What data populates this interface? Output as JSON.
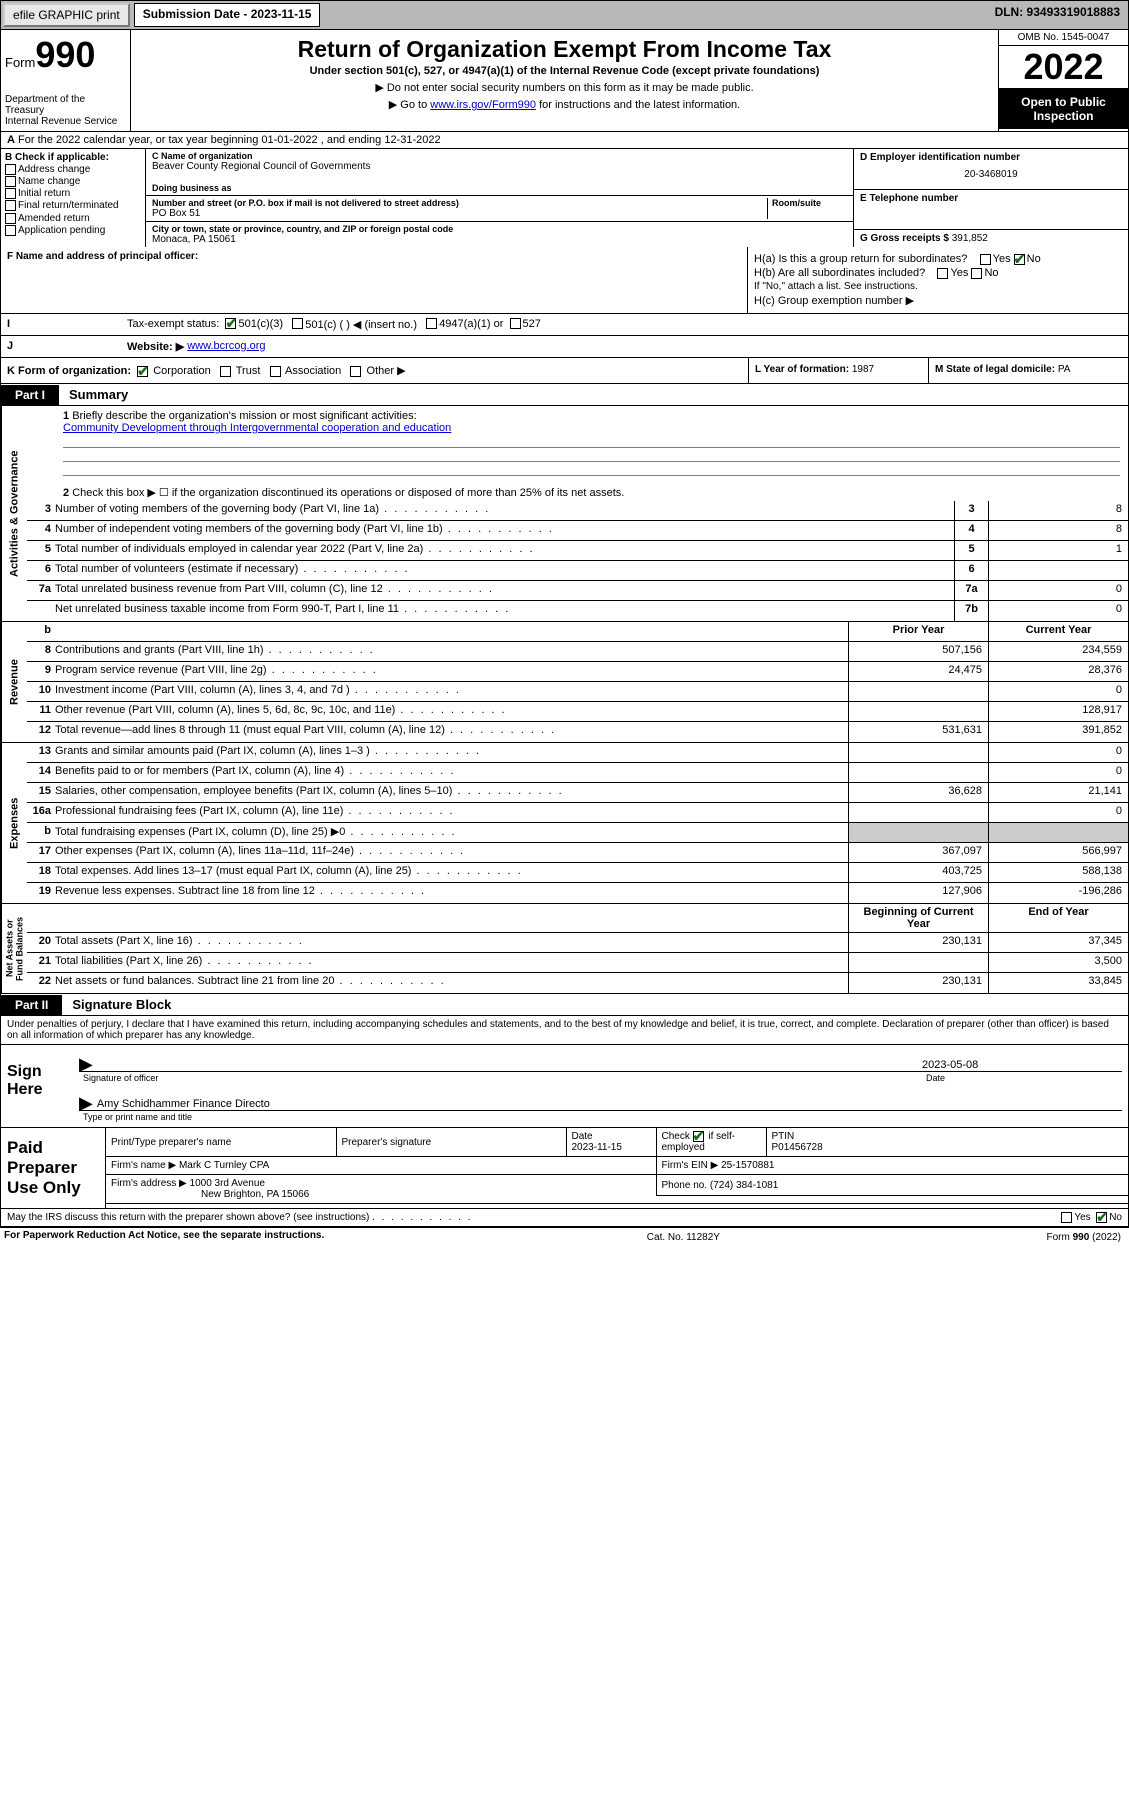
{
  "topbar": {
    "efile": "efile GRAPHIC print",
    "subdate_label": "Submission Date - 2023-11-15",
    "dln": "DLN: 93493319018883"
  },
  "header": {
    "form_word": "Form",
    "form_num": "990",
    "title": "Return of Organization Exempt From Income Tax",
    "sub": "Under section 501(c), 527, or 4947(a)(1) of the Internal Revenue Code (except private foundations)",
    "note1": "▶ Do not enter social security numbers on this form as it may be made public.",
    "note2a": "▶ Go to ",
    "note2link": "www.irs.gov/Form990",
    "note2b": " for instructions and the latest information.",
    "dept": "Department of the Treasury\nInternal Revenue Service",
    "omb": "OMB No. 1545-0047",
    "year": "2022",
    "open": "Open to Public Inspection"
  },
  "A": {
    "text": "For the 2022 calendar year, or tax year beginning 01-01-2022    , and ending 12-31-2022"
  },
  "B": {
    "lbl": "B Check if applicable:",
    "opts": [
      "Address change",
      "Name change",
      "Initial return",
      "Final return/terminated",
      "Amended return",
      "Application pending"
    ]
  },
  "C": {
    "name_lbl": "C Name of organization",
    "name": "Beaver County Regional Council of Governments",
    "dba_lbl": "Doing business as",
    "addr_lbl": "Number and street (or P.O. box if mail is not delivered to street address)",
    "room_lbl": "Room/suite",
    "addr": "PO Box 51",
    "city_lbl": "City or town, state or province, country, and ZIP or foreign postal code",
    "city": "Monaca, PA   15061"
  },
  "D": {
    "lbl": "D Employer identification number",
    "val": "20-3468019"
  },
  "E": {
    "lbl": "E Telephone number",
    "val": ""
  },
  "G": {
    "lbl": "G Gross receipts $",
    "val": "391,852"
  },
  "F": {
    "lbl": "F  Name and address of principal officer:"
  },
  "H": {
    "a": "H(a)  Is this a group return for subordinates?",
    "b": "H(b)  Are all subordinates included?",
    "bnote": "If \"No,\" attach a list. See instructions.",
    "c": "H(c)  Group exemption number ▶",
    "yes": "Yes",
    "no": "No"
  },
  "I": {
    "lbl": "Tax-exempt status:",
    "opts": [
      "501(c)(3)",
      "501(c) (   ) ◀ (insert no.)",
      "4947(a)(1) or",
      "527"
    ]
  },
  "J": {
    "lbl": "Website: ▶",
    "val": "www.bcrcog.org"
  },
  "K": {
    "text": "K Form of organization:",
    "opts": [
      "Corporation",
      "Trust",
      "Association",
      "Other ▶"
    ]
  },
  "L": {
    "lbl": "L Year of formation: ",
    "val": "1987"
  },
  "M": {
    "lbl": "M State of legal domicile: ",
    "val": "PA"
  },
  "part1": {
    "tag": "Part I",
    "title": "Summary",
    "q1a": "Briefly describe the organization's mission or most significant activities:",
    "q1b": "Community Development through Intergovernmental cooperation and education",
    "q2": "Check this box ▶ ☐  if the organization discontinued its operations or disposed of more than 25% of its net assets.",
    "side_ag": "Activities & Governance",
    "side_rev": "Revenue",
    "side_exp": "Expenses",
    "side_na": "Net Assets or\nFund Balances",
    "col_prior": "Prior Year",
    "col_curr": "Current Year",
    "col_beg": "Beginning of Current Year",
    "col_end": "End of Year",
    "rows_top": [
      {
        "n": "3",
        "d": "Number of voting members of the governing body (Part VI, line 1a)",
        "box": "3",
        "v": "8"
      },
      {
        "n": "4",
        "d": "Number of independent voting members of the governing body (Part VI, line 1b)",
        "box": "4",
        "v": "8"
      },
      {
        "n": "5",
        "d": "Total number of individuals employed in calendar year 2022 (Part V, line 2a)",
        "box": "5",
        "v": "1"
      },
      {
        "n": "6",
        "d": "Total number of volunteers (estimate if necessary)",
        "box": "6",
        "v": ""
      },
      {
        "n": "7a",
        "d": "Total unrelated business revenue from Part VIII, column (C), line 12",
        "box": "7a",
        "v": "0"
      },
      {
        "n": "",
        "d": "Net unrelated business taxable income from Form 990-T, Part I, line 11",
        "box": "7b",
        "v": "0"
      }
    ],
    "rows_rev": [
      {
        "n": "8",
        "d": "Contributions and grants (Part VIII, line 1h)",
        "p": "507,156",
        "c": "234,559"
      },
      {
        "n": "9",
        "d": "Program service revenue (Part VIII, line 2g)",
        "p": "24,475",
        "c": "28,376"
      },
      {
        "n": "10",
        "d": "Investment income (Part VIII, column (A), lines 3, 4, and 7d )",
        "p": "",
        "c": "0"
      },
      {
        "n": "11",
        "d": "Other revenue (Part VIII, column (A), lines 5, 6d, 8c, 9c, 10c, and 11e)",
        "p": "",
        "c": "128,917"
      },
      {
        "n": "12",
        "d": "Total revenue—add lines 8 through 11 (must equal Part VIII, column (A), line 12)",
        "p": "531,631",
        "c": "391,852"
      }
    ],
    "rows_exp": [
      {
        "n": "13",
        "d": "Grants and similar amounts paid (Part IX, column (A), lines 1–3 )",
        "p": "",
        "c": "0"
      },
      {
        "n": "14",
        "d": "Benefits paid to or for members (Part IX, column (A), line 4)",
        "p": "",
        "c": "0"
      },
      {
        "n": "15",
        "d": "Salaries, other compensation, employee benefits (Part IX, column (A), lines 5–10)",
        "p": "36,628",
        "c": "21,141"
      },
      {
        "n": "16a",
        "d": "Professional fundraising fees (Part IX, column (A), line 11e)",
        "p": "",
        "c": "0"
      },
      {
        "n": "b",
        "d": "Total fundraising expenses (Part IX, column (D), line 25) ▶0",
        "p": "SHADE",
        "c": "SHADE"
      },
      {
        "n": "17",
        "d": "Other expenses (Part IX, column (A), lines 11a–11d, 11f–24e)",
        "p": "367,097",
        "c": "566,997"
      },
      {
        "n": "18",
        "d": "Total expenses. Add lines 13–17 (must equal Part IX, column (A), line 25)",
        "p": "403,725",
        "c": "588,138"
      },
      {
        "n": "19",
        "d": "Revenue less expenses. Subtract line 18 from line 12",
        "p": "127,906",
        "c": "-196,286"
      }
    ],
    "rows_na": [
      {
        "n": "20",
        "d": "Total assets (Part X, line 16)",
        "p": "230,131",
        "c": "37,345"
      },
      {
        "n": "21",
        "d": "Total liabilities (Part X, line 26)",
        "p": "",
        "c": "3,500"
      },
      {
        "n": "22",
        "d": "Net assets or fund balances. Subtract line 21 from line 20",
        "p": "230,131",
        "c": "33,845"
      }
    ]
  },
  "part2": {
    "tag": "Part II",
    "title": "Signature Block",
    "decl": "Under penalties of perjury, I declare that I have examined this return, including accompanying schedules and statements, and to the best of my knowledge and belief, it is true, correct, and complete. Declaration of preparer (other than officer) is based on all information of which preparer has any knowledge.",
    "sign_here": "Sign Here",
    "sig_officer": "Signature of officer",
    "sig_date_lbl": "Date",
    "sig_date": "2023-05-08",
    "sig_name": "Amy Schidhammer Finance Directo",
    "sig_name_lbl": "Type or print name and title",
    "paid_lbl": "Paid Preparer Use Only",
    "pp_name_lbl": "Print/Type preparer's name",
    "pp_sig_lbl": "Preparer's signature",
    "pp_date_lbl": "Date",
    "pp_date": "2023-11-15",
    "pp_check_lbl": "Check ☑ if self-employed",
    "pp_ptin_lbl": "PTIN",
    "pp_ptin": "P01456728",
    "firm_name_lbl": "Firm's name    ▶",
    "firm_name": "Mark C Turnley CPA",
    "firm_ein_lbl": "Firm's EIN ▶",
    "firm_ein": "25-1570881",
    "firm_addr_lbl": "Firm's address ▶",
    "firm_addr1": "1000 3rd Avenue",
    "firm_addr2": "New Brighton, PA  15066",
    "firm_phone_lbl": "Phone no.",
    "firm_phone": "(724) 384-1081",
    "discuss": "May the IRS discuss this return with the preparer shown above? (see instructions)",
    "foot_left": "For Paperwork Reduction Act Notice, see the separate instructions.",
    "foot_mid": "Cat. No. 11282Y",
    "foot_right": "Form 990 (2022)"
  }
}
